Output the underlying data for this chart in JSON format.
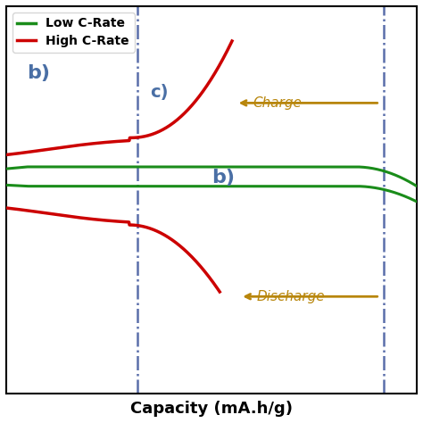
{
  "title": "Capacity (mA.h/g)",
  "xlim": [
    0,
    10
  ],
  "ylim": [
    0,
    10
  ],
  "vline1_x": 3.2,
  "vline2_x": 9.2,
  "legend_labels": [
    "Low C-Rate",
    "High C-Rate"
  ],
  "legend_colors": [
    "#1a8c1a",
    "#cc0000"
  ],
  "label_b_left": "b)",
  "label_b_right": "b)",
  "label_c": "c)",
  "charge_label": "Charge",
  "discharge_label": "Discharge",
  "annotation_color": "#b8860b",
  "label_color": "#4a6fa5",
  "green_upper_y": 5.85,
  "green_lower_y": 5.35,
  "green_end_upper": 5.75,
  "green_end_lower": 5.15
}
